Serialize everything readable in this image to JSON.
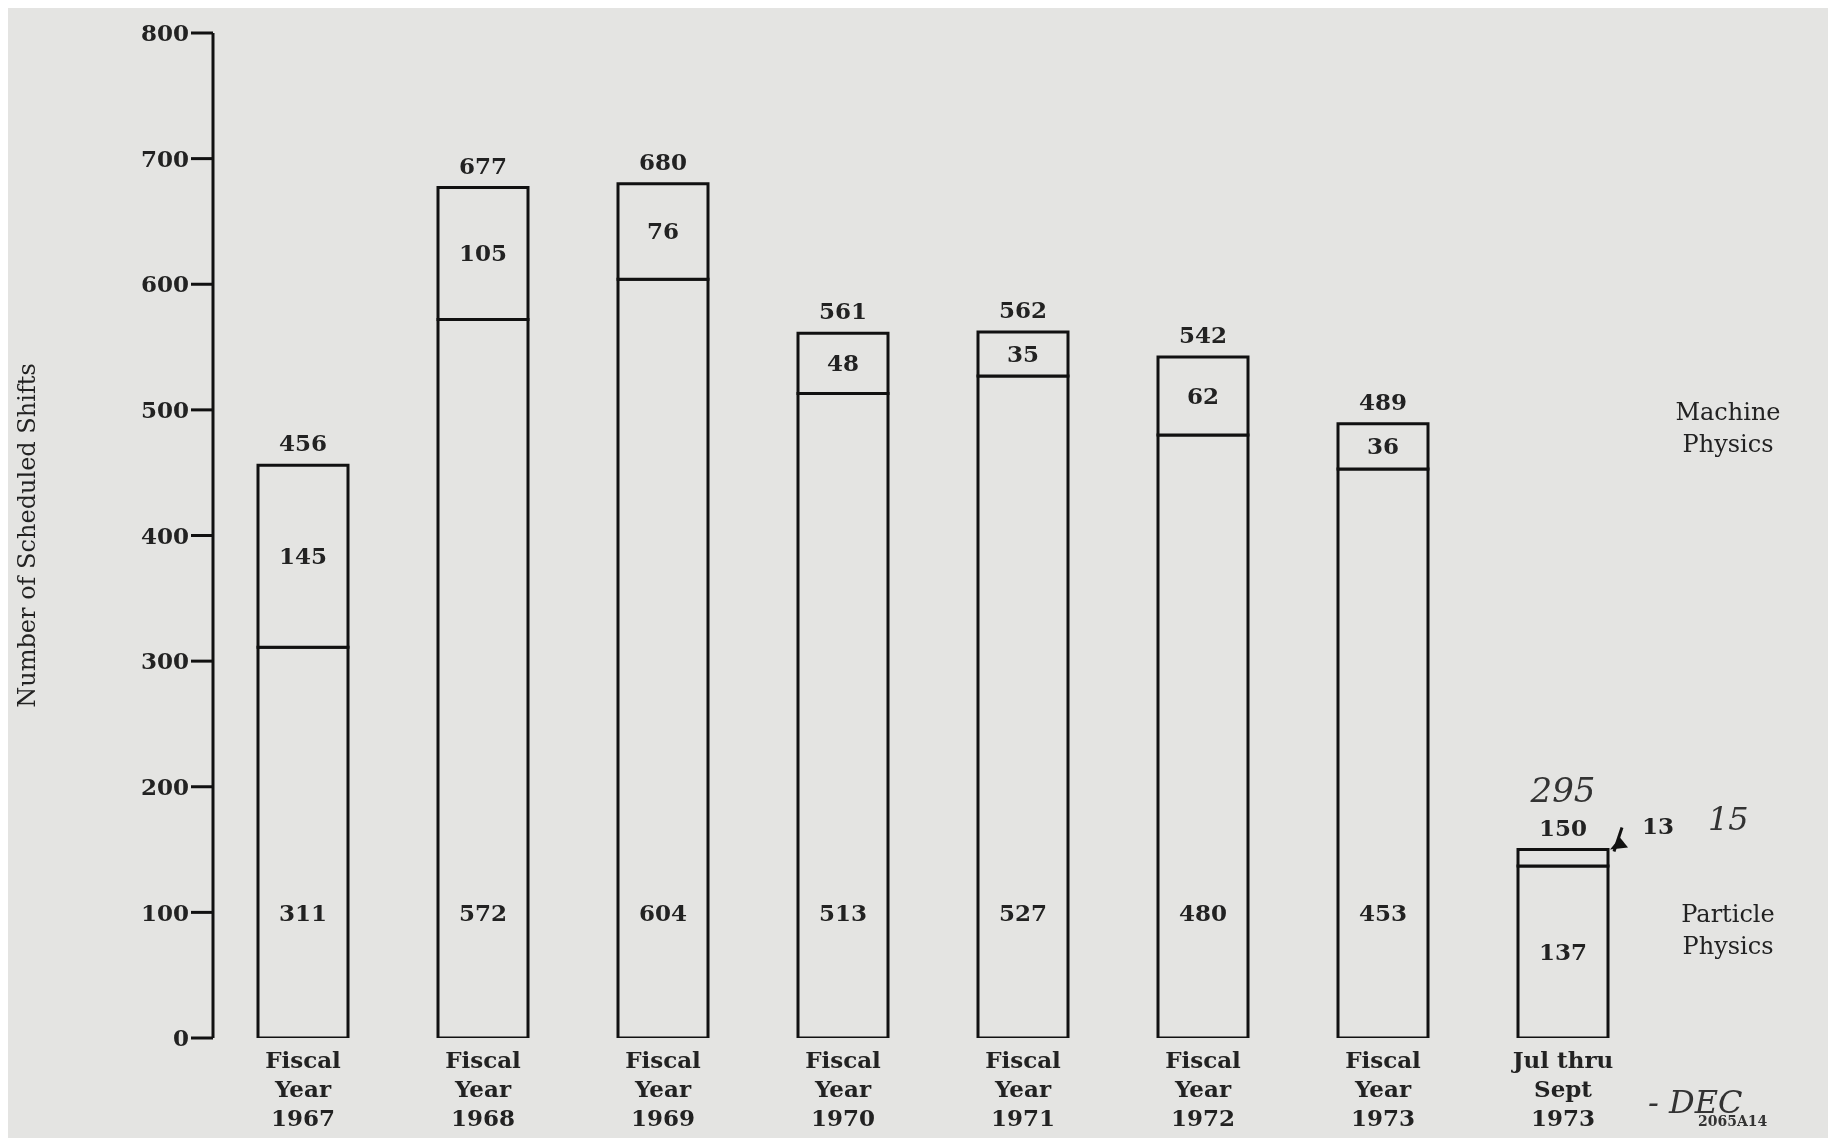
{
  "chart_data": {
    "type": "bar",
    "stacked": true,
    "ylabel": "Number of Scheduled Shifts",
    "categories": [
      "Fiscal\nYear\n1967",
      "Fiscal\nYear\n1968",
      "Fiscal\nYear\n1969",
      "Fiscal\nYear\n1970",
      "Fiscal\nYear\n1971",
      "Fiscal\nYear\n1972",
      "Fiscal\nYear\n1973",
      "Jul thru\nSept\n1973"
    ],
    "series": [
      {
        "name": "Particle Physics",
        "color": "#e4e4e2",
        "values": [
          311,
          572,
          604,
          513,
          527,
          480,
          453,
          137
        ]
      },
      {
        "name": "Machine Physics",
        "color": "#e4e4e2",
        "values": [
          145,
          105,
          76,
          48,
          35,
          62,
          36,
          13
        ]
      }
    ],
    "totals": [
      "456",
      "677",
      "680",
      "561",
      "562",
      "542",
      "489",
      "150"
    ],
    "data_labels": true,
    "ylim": [
      0,
      800
    ],
    "yticks": [
      0,
      100,
      200,
      300,
      400,
      500,
      600,
      700,
      800
    ],
    "annotations": [
      {
        "text": "295",
        "x": "Jul thru\nSept\n1973",
        "y": 150
      },
      "15",
      "- DEC",
      "2065A14"
    ]
  }
}
